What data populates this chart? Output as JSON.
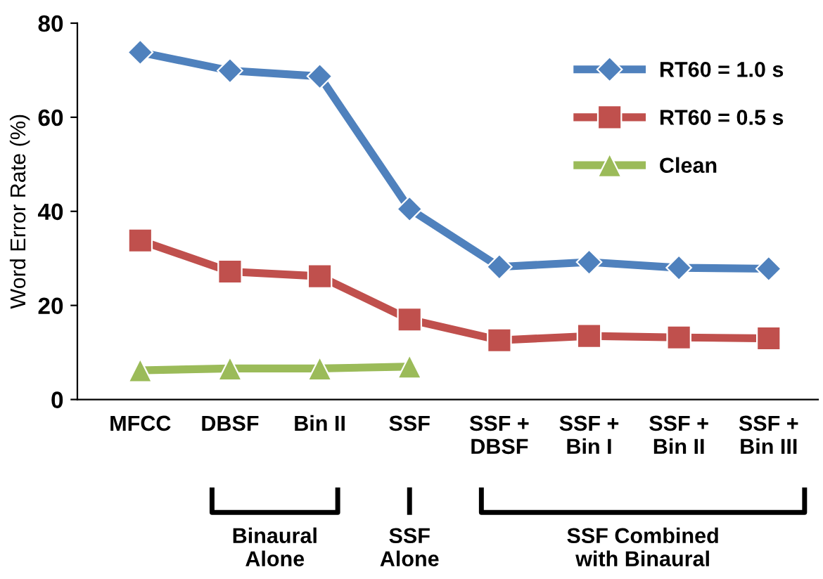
{
  "chart_data": {
    "type": "line",
    "ylabel": "Word Error Rate (%)",
    "categories": [
      "MFCC",
      "DBSF",
      "Bin II",
      "SSF",
      "SSF +\nDBSF",
      "SSF +\nBin I",
      "SSF +\nBin II",
      "SSF +\nBin III"
    ],
    "series": [
      {
        "name": "RT60 = 1.0 s",
        "color": "#4f81bd",
        "marker": "diamond",
        "values": [
          73.8,
          69.9,
          68.7,
          40.5,
          28.2,
          29.2,
          28,
          27.8
        ]
      },
      {
        "name": "RT60 = 0.5 s",
        "color": "#c0504d",
        "marker": "square",
        "values": [
          33.8,
          27.2,
          26.2,
          17,
          12.6,
          13.5,
          13.2,
          13
        ]
      },
      {
        "name": "Clean",
        "color": "#9bbb59",
        "marker": "triangle",
        "values": [
          6.2,
          6.6,
          6.6,
          7,
          null,
          null,
          null,
          null
        ]
      }
    ],
    "ylim": [
      0,
      80
    ],
    "yticks": [
      0,
      20,
      40,
      60,
      80
    ],
    "grid": false,
    "legend": "top right",
    "annotations": [
      "Binaural\nAlone",
      "SSF\nAlone",
      "SSF Combined\nwith Binaural"
    ]
  }
}
